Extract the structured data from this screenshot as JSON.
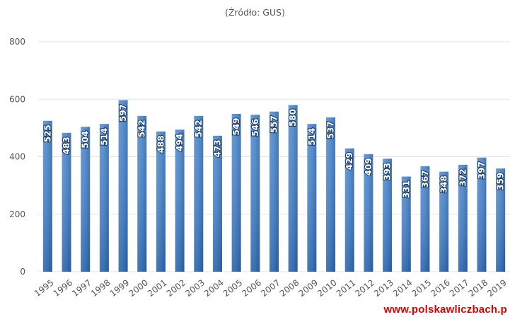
{
  "chart_data": {
    "type": "bar",
    "subtitle": "(Źródło: GUS)",
    "categories": [
      "1995",
      "1996",
      "1997",
      "1998",
      "1999",
      "2000",
      "2001",
      "2002",
      "2003",
      "2004",
      "2005",
      "2006",
      "2007",
      "2008",
      "2009",
      "2010",
      "2011",
      "2012",
      "2013",
      "2014",
      "2015",
      "2016",
      "2017",
      "2018",
      "2019"
    ],
    "values": [
      525,
      483,
      504,
      514,
      597,
      542,
      488,
      494,
      542,
      473,
      549,
      546,
      557,
      580,
      514,
      537,
      429,
      409,
      393,
      331,
      367,
      348,
      372,
      397,
      359
    ],
    "ylim": [
      0,
      800
    ],
    "yticks": [
      0,
      200,
      400,
      600,
      800
    ],
    "grid": true,
    "bar_color": "#3d78c0",
    "label_color": "#ffffff"
  },
  "watermark": "www.polskawliczbach.p"
}
